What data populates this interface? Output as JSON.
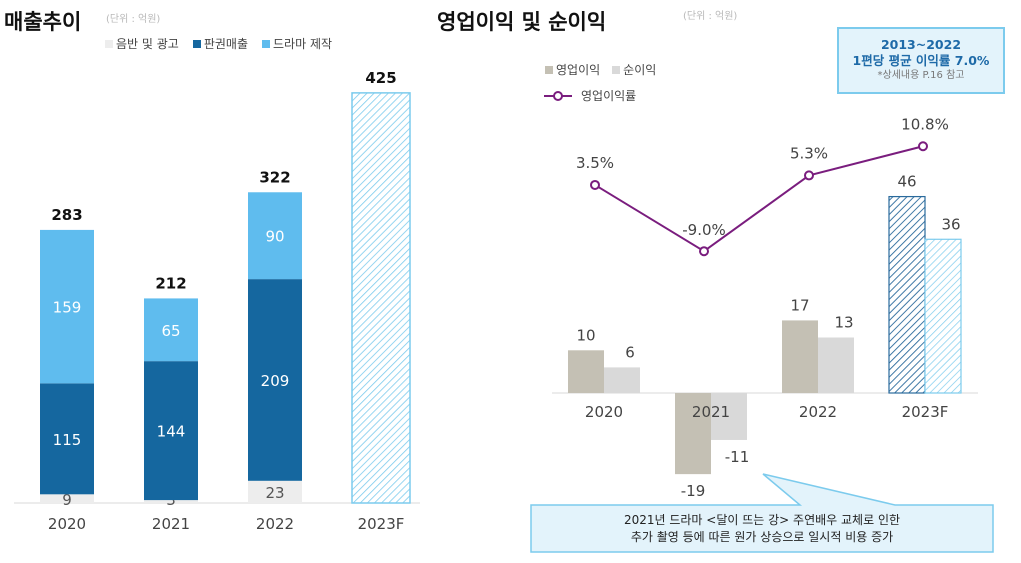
{
  "left_panel": {
    "title": "매출추이",
    "unit": "(단위 : 억원)",
    "legend": [
      {
        "label": "음반 및 광고",
        "color": "#ededed"
      },
      {
        "label": "판권매출",
        "color": "#15679f"
      },
      {
        "label": "드라마 제작",
        "color": "#5fbcee"
      }
    ]
  },
  "right_panel": {
    "title": "영업이익 및 순이익",
    "unit": "(단위 : 억원)",
    "legend": [
      {
        "label": "영업이익",
        "color": "#c4c0b4"
      },
      {
        "label": "순이익",
        "color": "#d9d9d9"
      },
      {
        "label": "영업이익률",
        "color": "#7a1d7e"
      }
    ],
    "callout": {
      "line1": "2013~2022",
      "line2": "1편당 평균 이익률 7.0%",
      "line3": "*상세내용 P.16 참고"
    },
    "note": {
      "line1": "2021년 드라마 <달이 뜨는 강> 주연배우 교체로 인한",
      "line2": "추가 촬영 등에 따른 원가 상승으로 일시적 비용 증가"
    }
  },
  "chart_data": [
    {
      "type": "bar",
      "stacked": true,
      "title": "매출추이",
      "unit": "억원",
      "categories": [
        "2020",
        "2021",
        "2022",
        "2023F"
      ],
      "series": [
        {
          "name": "음반 및 광고",
          "values": [
            9,
            3,
            23,
            null
          ],
          "color": "#ededed",
          "label_color": "#555555"
        },
        {
          "name": "판권매출",
          "values": [
            115,
            144,
            209,
            null
          ],
          "color": "#15679f",
          "label_color": "#ffffff"
        },
        {
          "name": "드라마 제작",
          "values": [
            159,
            65,
            90,
            null
          ],
          "color": "#5fbcee",
          "label_color": "#ffffff"
        }
      ],
      "totals": [
        283,
        212,
        322,
        425
      ],
      "forecast": {
        "category": "2023F",
        "total": 425,
        "style": "hatched",
        "color": "#7ccbed"
      },
      "ylim": [
        0,
        425
      ]
    },
    {
      "type": "bar+line",
      "title": "영업이익 및 순이익",
      "unit": "억원",
      "categories": [
        "2020",
        "2021",
        "2022",
        "2023F"
      ],
      "series": [
        {
          "name": "영업이익",
          "values": [
            10,
            -19,
            17,
            46
          ],
          "color": "#c4c0b4",
          "forecast_color": "#2a6a9c"
        },
        {
          "name": "순이익",
          "values": [
            6,
            -11,
            13,
            36
          ],
          "color": "#d9d9d9",
          "forecast_color": "#7ccbed"
        }
      ],
      "line": {
        "name": "영업이익률",
        "values": [
          3.5,
          -9.0,
          5.3,
          10.8
        ],
        "labels": [
          "3.5%",
          "-9.0%",
          "5.3%",
          "10.8%"
        ],
        "color": "#7a1d7e"
      },
      "ylim": [
        -19,
        46
      ]
    }
  ]
}
